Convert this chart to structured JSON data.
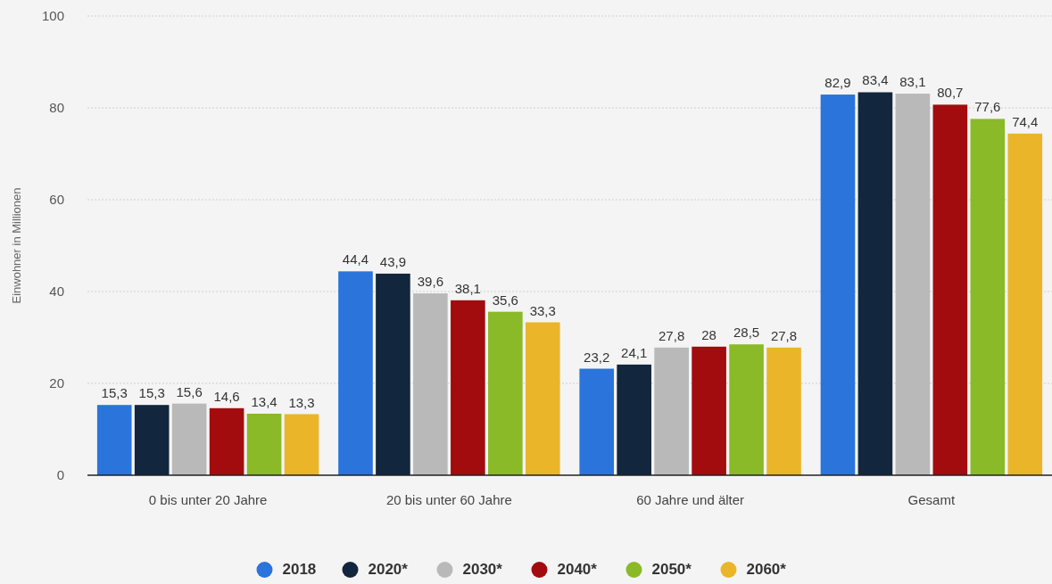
{
  "chart_data": {
    "type": "bar",
    "ylabel": "Einwohner in Millionen",
    "categories": [
      "0 bis unter 20 Jahre",
      "20 bis unter 60 Jahre",
      "60 Jahre und älter",
      "Gesamt"
    ],
    "series": [
      {
        "name": "2018",
        "color": "#2a74db",
        "values": [
          15.3,
          44.4,
          23.2,
          82.9
        ],
        "value_labels": [
          "15,3",
          "44,4",
          "23,2",
          "82,9"
        ]
      },
      {
        "name": "2020*",
        "color": "#12263d",
        "values": [
          15.3,
          43.9,
          24.1,
          83.4
        ],
        "value_labels": [
          "15,3",
          "43,9",
          "24,1",
          "83,4"
        ]
      },
      {
        "name": "2030*",
        "color": "#b9b9b9",
        "values": [
          15.6,
          39.6,
          27.8,
          83.1
        ],
        "value_labels": [
          "15,6",
          "39,6",
          "27,8",
          "83,1"
        ]
      },
      {
        "name": "2040*",
        "color": "#a20c0e",
        "values": [
          14.6,
          38.1,
          28,
          80.7
        ],
        "value_labels": [
          "14,6",
          "38,1",
          "28",
          "80,7"
        ]
      },
      {
        "name": "2050*",
        "color": "#8aba28",
        "values": [
          13.4,
          35.6,
          28.5,
          77.6
        ],
        "value_labels": [
          "13,4",
          "35,6",
          "28,5",
          "77,6"
        ]
      },
      {
        "name": "2060*",
        "color": "#ebb52a",
        "values": [
          13.3,
          33.3,
          27.8,
          74.4
        ],
        "value_labels": [
          "13,3",
          "33,3",
          "27,8",
          "74,4"
        ]
      }
    ],
    "ylim": [
      0,
      100
    ],
    "yticks": [
      0,
      20,
      40,
      60,
      80,
      100
    ],
    "grid": "y",
    "legend": "bottom"
  }
}
